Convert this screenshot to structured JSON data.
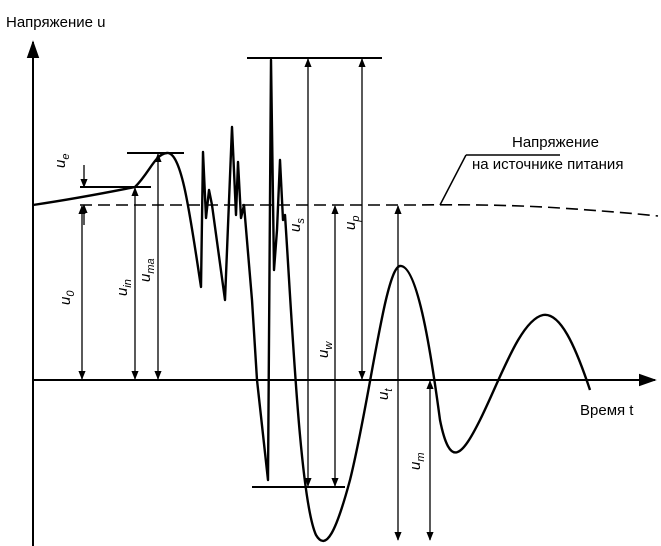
{
  "axes": {
    "y_label": "Напряжение u",
    "x_label": "Время t"
  },
  "supply_label": {
    "line1": "Напряжение",
    "line2": "на источнике питания"
  },
  "symbols": {
    "u_e": "u",
    "u_e_sub": "e",
    "u_0": "u",
    "u_0_sub": "0",
    "u_in": "u",
    "u_in_sub": "in",
    "u_ma": "u",
    "u_ma_sub": "ma",
    "u_s": "u",
    "u_s_sub": "s",
    "u_w": "u",
    "u_w_sub": "w",
    "u_p": "u",
    "u_p_sub": "p",
    "u_t": "u",
    "u_t_sub": "t",
    "u_m": "u",
    "u_m_sub": "m"
  }
}
